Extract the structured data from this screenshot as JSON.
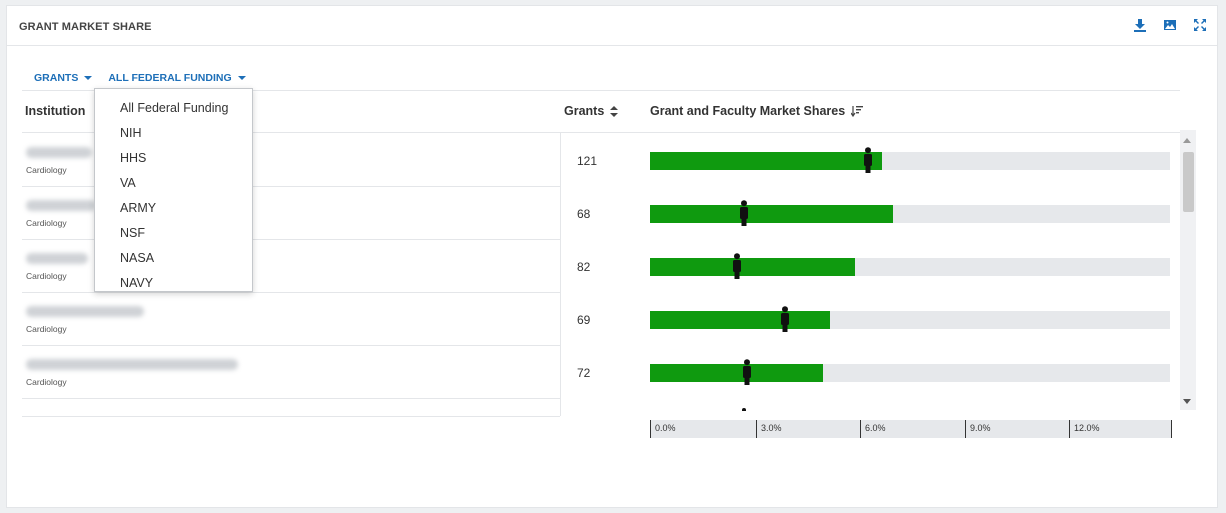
{
  "panel": {
    "title": "GRANT MARKET SHARE"
  },
  "header_icons": [
    "download-icon",
    "image-icon",
    "expand-icon"
  ],
  "filters": [
    {
      "label": "GRANTS"
    },
    {
      "label": "ALL FEDERAL FUNDING"
    }
  ],
  "table": {
    "columns": {
      "institution": "Institution",
      "grants": "Grants",
      "share": "Grant and Faculty Market Shares"
    },
    "rows": [
      {
        "department": "Cardiology",
        "grants": "121",
        "grant_share_pct": 6.7,
        "faculty_share_pct": 6.3
      },
      {
        "department": "Cardiology",
        "grants": "68",
        "grant_share_pct": 7.0,
        "faculty_share_pct": 2.7
      },
      {
        "department": "Cardiology",
        "grants": "82",
        "grant_share_pct": 5.9,
        "faculty_share_pct": 2.5
      },
      {
        "department": "Cardiology",
        "grants": "69",
        "grant_share_pct": 5.2,
        "faculty_share_pct": 3.9
      },
      {
        "department": "Cardiology",
        "grants": "72",
        "grant_share_pct": 5.0,
        "faculty_share_pct": 2.8
      }
    ]
  },
  "axis": {
    "ticks": [
      "0.0%",
      "3.0%",
      "6.0%",
      "9.0%",
      "12.0%"
    ]
  },
  "dropdown": {
    "options": [
      "All Federal Funding",
      "NIH",
      "HHS",
      "VA",
      "ARMY",
      "NSF",
      "NASA",
      "NAVY"
    ],
    "selected": "All Federal Funding"
  },
  "colors": {
    "accent": "#1d6fb8",
    "grant_bar": "#0f9a0f",
    "track": "#e6e8eb",
    "marker": "#111111"
  }
}
